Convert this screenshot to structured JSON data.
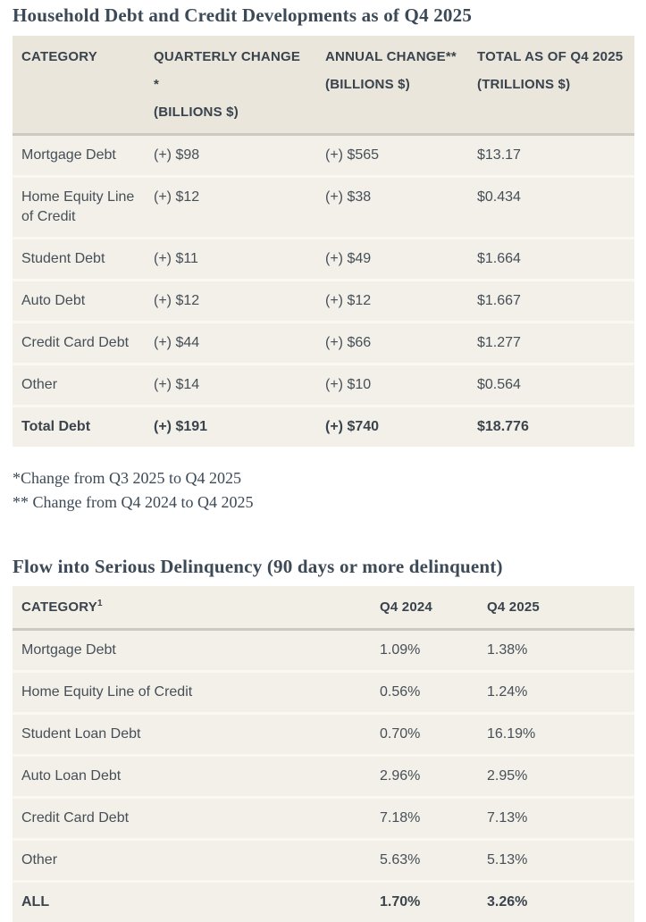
{
  "colors": {
    "title_text": "#3c4956",
    "body_text": "#464f57",
    "header_text": "#39434d",
    "table1_header_bg": "#eae6db",
    "table2_header_bg": "#f2efe7",
    "row_bg": "#f3f0e9",
    "thick_divider": "#cbc9c1",
    "row_divider": "#faf8f2",
    "page_bg": "#ffffff"
  },
  "debt_table": {
    "title": "Household Debt and Credit Developments as of Q4 2025",
    "columns": [
      {
        "line1": "CATEGORY",
        "line2": ""
      },
      {
        "line1": "QUARTERLY CHANGE *",
        "line2": "(BILLIONS $)"
      },
      {
        "line1": "ANNUAL CHANGE**",
        "line2": "(BILLIONS $)"
      },
      {
        "line1": "TOTAL AS OF Q4 2025",
        "line2": "(TRILLIONS $)"
      }
    ],
    "rows": [
      {
        "cells": [
          "Mortgage Debt",
          "(+) $98",
          "(+) $565",
          "$13.17"
        ],
        "bold": false
      },
      {
        "cells": [
          "Home Equity Line of Credit",
          "(+) $12",
          "(+) $38",
          "$0.434"
        ],
        "bold": false
      },
      {
        "cells": [
          "Student Debt",
          "(+) $11",
          "(+) $49",
          "$1.664"
        ],
        "bold": false
      },
      {
        "cells": [
          "Auto Debt",
          "(+) $12",
          "(+) $12",
          "$1.667"
        ],
        "bold": false
      },
      {
        "cells": [
          "Credit Card Debt",
          "(+) $44",
          "(+) $66",
          "$1.277"
        ],
        "bold": false
      },
      {
        "cells": [
          "Other",
          "(+) $14",
          "(+) $10",
          "$0.564"
        ],
        "bold": false
      },
      {
        "cells": [
          "Total Debt",
          "(+) $191",
          "(+) $740",
          "$18.776"
        ],
        "bold": true
      }
    ],
    "footnotes": [
      "*Change from Q3 2025 to Q4 2025",
      "** Change from Q4 2024 to Q4 2025"
    ]
  },
  "delinquency_table": {
    "title": "Flow into Serious Delinquency (90 days or more delinquent)",
    "columns": [
      {
        "label": "CATEGORY",
        "sup": "1"
      },
      {
        "label": "Q4 2024",
        "sup": ""
      },
      {
        "label": "Q4 2025",
        "sup": ""
      }
    ],
    "rows": [
      {
        "cells": [
          "Mortgage Debt",
          "1.09%",
          "1.38%"
        ],
        "bold": false
      },
      {
        "cells": [
          "Home Equity Line of Credit",
          "0.56%",
          "1.24%"
        ],
        "bold": false
      },
      {
        "cells": [
          "Student Loan Debt",
          "0.70%",
          "16.19%"
        ],
        "bold": false
      },
      {
        "cells": [
          "Auto Loan Debt",
          "2.96%",
          "2.95%"
        ],
        "bold": false
      },
      {
        "cells": [
          "Credit Card Debt",
          "7.18%",
          "7.13%"
        ],
        "bold": false
      },
      {
        "cells": [
          "Other",
          "5.63%",
          "5.13%"
        ],
        "bold": false
      },
      {
        "cells": [
          "ALL",
          "1.70%",
          "3.26%"
        ],
        "bold": true
      }
    ]
  },
  "chart_data": [
    {
      "type": "table",
      "title": "Household Debt and Credit Developments as of Q4 2025",
      "columns": [
        "CATEGORY",
        "QUARTERLY CHANGE * (BILLIONS $)",
        "ANNUAL CHANGE** (BILLIONS $)",
        "TOTAL AS OF Q4 2025 (TRILLIONS $)"
      ],
      "rows": [
        [
          "Mortgage Debt",
          98,
          565,
          13.17
        ],
        [
          "Home Equity Line of Credit",
          12,
          38,
          0.434
        ],
        [
          "Student Debt",
          11,
          49,
          1.664
        ],
        [
          "Auto Debt",
          12,
          12,
          1.667
        ],
        [
          "Credit Card Debt",
          44,
          66,
          1.277
        ],
        [
          "Other",
          14,
          10,
          0.564
        ],
        [
          "Total Debt",
          191,
          740,
          18.776
        ]
      ]
    },
    {
      "type": "table",
      "title": "Flow into Serious Delinquency (90 days or more delinquent)",
      "columns": [
        "CATEGORY",
        "Q4 2024",
        "Q4 2025"
      ],
      "unit": "%",
      "rows": [
        [
          "Mortgage Debt",
          1.09,
          1.38
        ],
        [
          "Home Equity Line of Credit",
          0.56,
          1.24
        ],
        [
          "Student Loan Debt",
          0.7,
          16.19
        ],
        [
          "Auto Loan Debt",
          2.96,
          2.95
        ],
        [
          "Credit Card Debt",
          7.18,
          7.13
        ],
        [
          "Other",
          5.63,
          5.13
        ],
        [
          "ALL",
          1.7,
          3.26
        ]
      ]
    }
  ]
}
